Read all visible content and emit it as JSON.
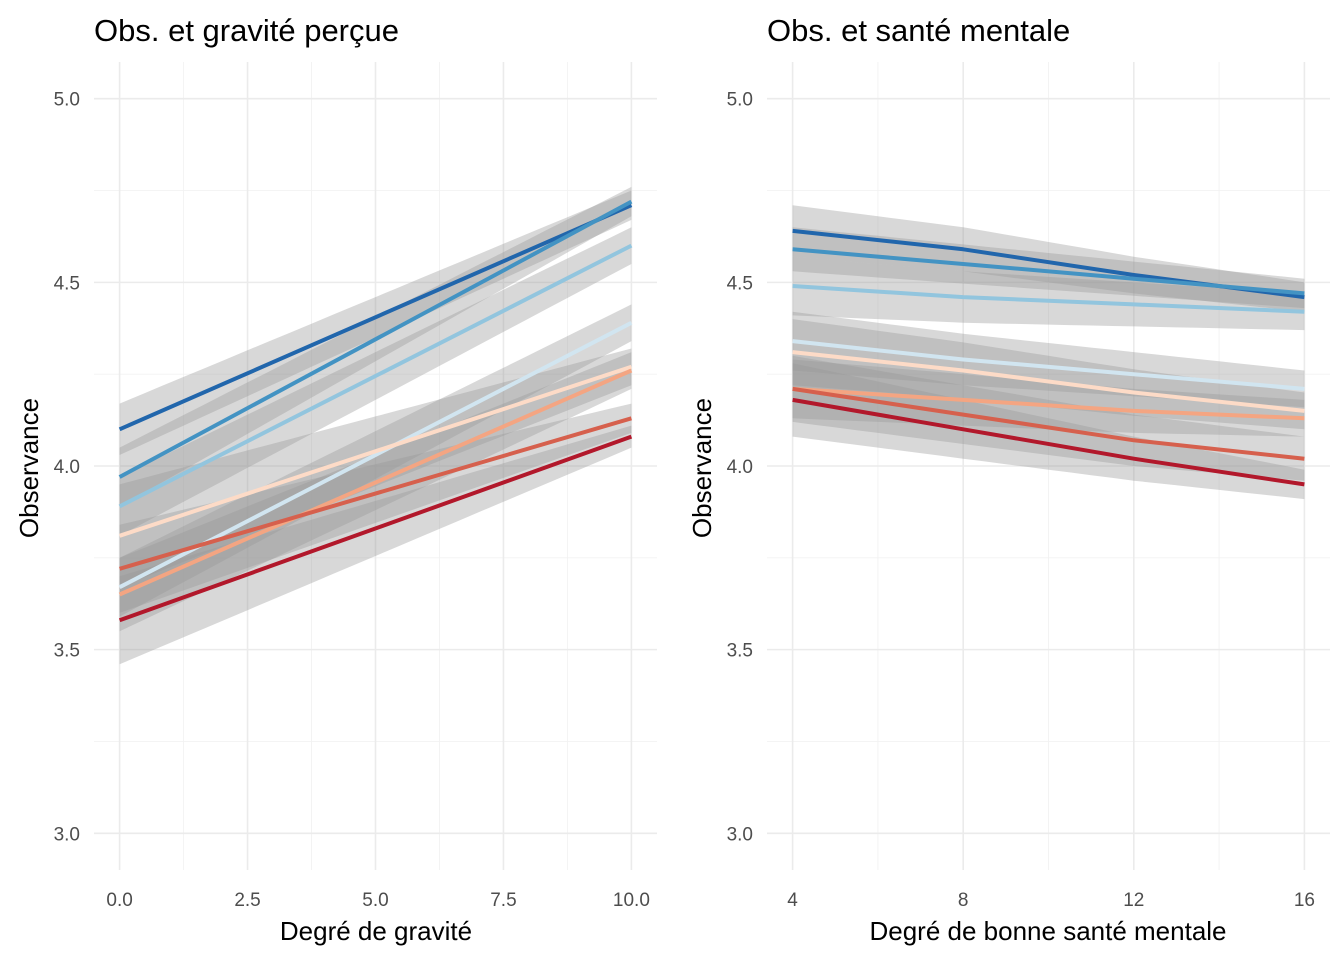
{
  "chart_data": [
    {
      "type": "line",
      "title": "Obs. et gravité perçue",
      "xlabel": "Degré de gravité",
      "ylabel": "Observance",
      "xlim": [
        0,
        10
      ],
      "ylim": [
        2.9,
        5.1
      ],
      "x_ticks": [
        0,
        2.5,
        5,
        7.5,
        10
      ],
      "x_tick_labels": [
        "0.0",
        "2.5",
        "5.0",
        "7.5",
        "10.0"
      ],
      "y_ticks": [
        3.0,
        3.5,
        4.0,
        4.5,
        5.0
      ],
      "y_tick_labels": [
        "3.0",
        "3.5",
        "4.0",
        "4.5",
        "5.0"
      ],
      "grid": true,
      "confidence_band_color": "#999999",
      "series": [
        {
          "color": "#2166ac",
          "x": [
            0,
            10
          ],
          "y": [
            4.1,
            4.71
          ],
          "ci_width": [
            0.07,
            0.04
          ]
        },
        {
          "color": "#4393c3",
          "x": [
            0,
            10
          ],
          "y": [
            3.97,
            4.72
          ],
          "ci_width": [
            0.08,
            0.04
          ]
        },
        {
          "color": "#92c5de",
          "x": [
            0,
            10
          ],
          "y": [
            3.89,
            4.6
          ],
          "ci_width": [
            0.08,
            0.05
          ]
        },
        {
          "color": "#d1e5f0",
          "x": [
            0,
            10
          ],
          "y": [
            3.67,
            4.39
          ],
          "ci_width": [
            0.08,
            0.05
          ]
        },
        {
          "color": "#fddbc7",
          "x": [
            0,
            10
          ],
          "y": [
            3.81,
            4.27
          ],
          "ci_width": [
            0.14,
            0.05
          ]
        },
        {
          "color": "#f4a582",
          "x": [
            0,
            10
          ],
          "y": [
            3.65,
            4.26
          ],
          "ci_width": [
            0.1,
            0.05
          ]
        },
        {
          "color": "#d6604d",
          "x": [
            0,
            10
          ],
          "y": [
            3.72,
            4.13
          ],
          "ci_width": [
            0.12,
            0.04
          ]
        },
        {
          "color": "#b2182b",
          "x": [
            0,
            10
          ],
          "y": [
            3.58,
            4.08
          ],
          "ci_width": [
            0.12,
            0.03
          ]
        }
      ]
    },
    {
      "type": "line",
      "title": "Obs. et santé mentale",
      "xlabel": "Degré de bonne santé mentale",
      "ylabel": "Observance",
      "xlim": [
        4,
        16
      ],
      "ylim": [
        2.9,
        5.1
      ],
      "x_ticks": [
        4,
        8,
        12,
        16
      ],
      "x_tick_labels": [
        "4",
        "8",
        "12",
        "16"
      ],
      "y_ticks": [
        3.0,
        3.5,
        4.0,
        4.5,
        5.0
      ],
      "y_tick_labels": [
        "3.0",
        "3.5",
        "4.0",
        "4.5",
        "5.0"
      ],
      "grid": true,
      "confidence_band_color": "#999999",
      "series": [
        {
          "color": "#2166ac",
          "x": [
            4,
            8,
            12,
            16
          ],
          "y": [
            4.64,
            4.59,
            4.52,
            4.46
          ],
          "ci_width": [
            0.07,
            0.04
          ]
        },
        {
          "color": "#4393c3",
          "x": [
            4,
            8,
            12,
            16
          ],
          "y": [
            4.59,
            4.55,
            4.51,
            4.47
          ],
          "ci_width": [
            0.06,
            0.04
          ]
        },
        {
          "color": "#92c5de",
          "x": [
            4,
            8,
            12,
            16
          ],
          "y": [
            4.49,
            4.46,
            4.44,
            4.42
          ],
          "ci_width": [
            0.08,
            0.05
          ]
        },
        {
          "color": "#d1e5f0",
          "x": [
            4,
            8,
            12,
            16
          ],
          "y": [
            4.34,
            4.29,
            4.25,
            4.21
          ],
          "ci_width": [
            0.08,
            0.05
          ]
        },
        {
          "color": "#fddbc7",
          "x": [
            4,
            8,
            12,
            16
          ],
          "y": [
            4.31,
            4.26,
            4.2,
            4.15
          ],
          "ci_width": [
            0.09,
            0.05
          ]
        },
        {
          "color": "#f4a582",
          "x": [
            4,
            8,
            12,
            16
          ],
          "y": [
            4.21,
            4.18,
            4.15,
            4.13
          ],
          "ci_width": [
            0.08,
            0.05
          ]
        },
        {
          "color": "#d6604d",
          "x": [
            4,
            8,
            12,
            16
          ],
          "y": [
            4.21,
            4.14,
            4.07,
            4.02
          ],
          "ci_width": [
            0.09,
            0.06
          ]
        },
        {
          "color": "#b2182b",
          "x": [
            4,
            8,
            12,
            16
          ],
          "y": [
            4.18,
            4.1,
            4.02,
            3.95
          ],
          "ci_width": [
            0.1,
            0.04
          ]
        }
      ]
    }
  ]
}
